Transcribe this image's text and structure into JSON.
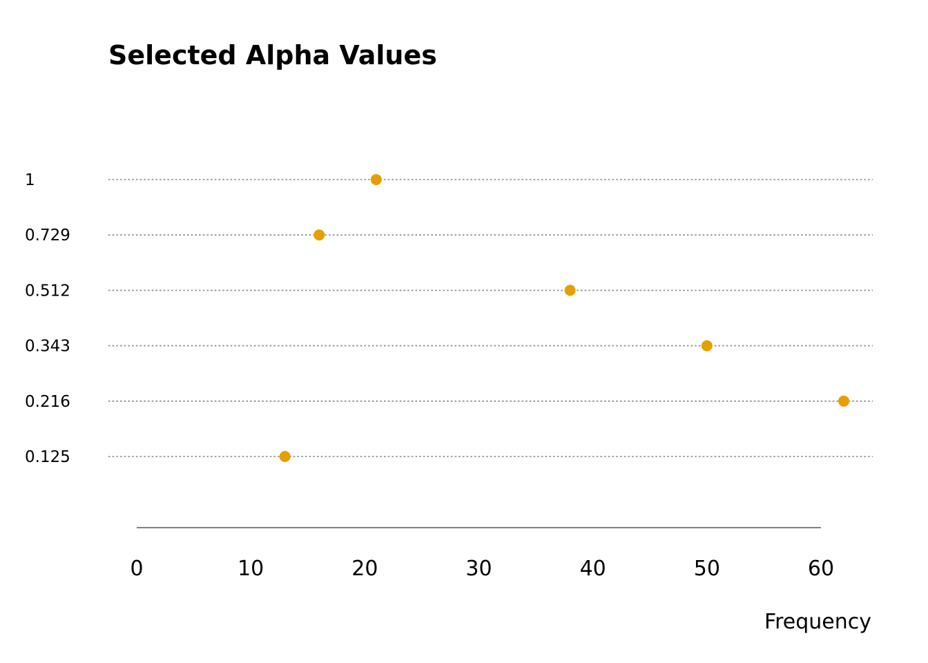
{
  "chart_data": {
    "type": "scatter",
    "title": "Selected Alpha Values",
    "xlabel": "Frequency",
    "ylabel": "",
    "categories": [
      "1",
      "0.729",
      "0.512",
      "0.343",
      "0.216",
      "0.125"
    ],
    "values": [
      21,
      16,
      38,
      50,
      62,
      13
    ],
    "xlim": [
      0,
      60
    ],
    "xticks": [
      0,
      10,
      20,
      30,
      40,
      50,
      60
    ],
    "grid": "horizontal dotted",
    "legend": "none",
    "colors": {
      "point": "#E69F00",
      "gridline": "#808080",
      "axis": "#808080",
      "text": "#000000"
    }
  }
}
